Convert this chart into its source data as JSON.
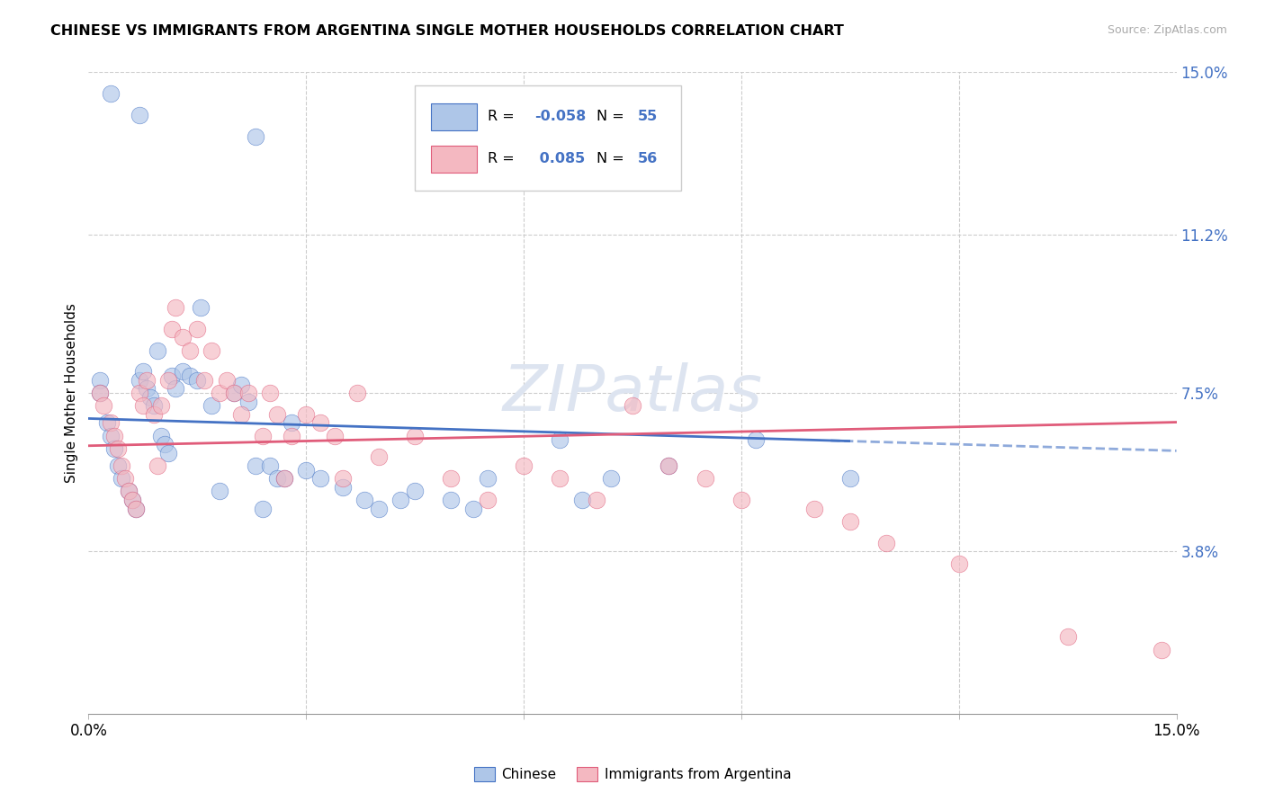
{
  "title": "CHINESE VS IMMIGRANTS FROM ARGENTINA SINGLE MOTHER HOUSEHOLDS CORRELATION CHART",
  "source": "Source: ZipAtlas.com",
  "ylabel": "Single Mother Households",
  "xlim": [
    0,
    15
  ],
  "ylim": [
    0,
    15
  ],
  "ytick_labels_right": [
    "3.8%",
    "7.5%",
    "11.2%",
    "15.0%"
  ],
  "ytick_values_right": [
    3.8,
    7.5,
    11.2,
    15.0
  ],
  "grid_color": "#cccccc",
  "background_color": "#ffffff",
  "chinese_color": "#aec6e8",
  "argentina_color": "#f4b8c1",
  "chinese_line_color": "#4472c4",
  "argentina_line_color": "#e05c7a",
  "label_color": "#4472c4",
  "chinese_R": "-0.058",
  "chinese_N": "55",
  "argentina_R": "0.085",
  "argentina_N": "56",
  "chinese_x": [
    0.3,
    0.7,
    2.3,
    0.15,
    0.15,
    0.25,
    0.3,
    0.35,
    0.4,
    0.45,
    0.55,
    0.6,
    0.65,
    0.7,
    0.75,
    0.8,
    0.85,
    0.9,
    0.95,
    1.0,
    1.05,
    1.1,
    1.15,
    1.2,
    1.3,
    1.4,
    1.5,
    1.55,
    1.7,
    1.8,
    2.0,
    2.1,
    2.2,
    2.3,
    2.4,
    2.5,
    2.6,
    2.7,
    2.8,
    3.0,
    3.2,
    3.5,
    3.8,
    4.0,
    4.3,
    4.5,
    5.0,
    5.3,
    5.5,
    6.5,
    6.8,
    7.2,
    8.0,
    9.2,
    10.5
  ],
  "chinese_y": [
    14.5,
    14.0,
    13.5,
    7.8,
    7.5,
    6.8,
    6.5,
    6.2,
    5.8,
    5.5,
    5.2,
    5.0,
    4.8,
    7.8,
    8.0,
    7.6,
    7.4,
    7.2,
    8.5,
    6.5,
    6.3,
    6.1,
    7.9,
    7.6,
    8.0,
    7.9,
    7.8,
    9.5,
    7.2,
    5.2,
    7.5,
    7.7,
    7.3,
    5.8,
    4.8,
    5.8,
    5.5,
    5.5,
    6.8,
    5.7,
    5.5,
    5.3,
    5.0,
    4.8,
    5.0,
    5.2,
    5.0,
    4.8,
    5.5,
    6.4,
    5.0,
    5.5,
    5.8,
    6.4,
    5.5
  ],
  "argentina_x": [
    0.15,
    0.2,
    0.3,
    0.35,
    0.4,
    0.45,
    0.5,
    0.55,
    0.6,
    0.65,
    0.7,
    0.75,
    0.8,
    0.9,
    0.95,
    1.0,
    1.1,
    1.15,
    1.2,
    1.3,
    1.4,
    1.5,
    1.6,
    1.7,
    1.8,
    1.9,
    2.0,
    2.1,
    2.2,
    2.4,
    2.5,
    2.6,
    2.7,
    2.8,
    3.0,
    3.2,
    3.4,
    3.5,
    3.7,
    4.0,
    4.5,
    5.0,
    5.5,
    6.0,
    6.5,
    7.0,
    7.5,
    8.0,
    8.5,
    9.0,
    10.0,
    10.5,
    11.0,
    12.0,
    13.5,
    14.8
  ],
  "argentina_y": [
    7.5,
    7.2,
    6.8,
    6.5,
    6.2,
    5.8,
    5.5,
    5.2,
    5.0,
    4.8,
    7.5,
    7.2,
    7.8,
    7.0,
    5.8,
    7.2,
    7.8,
    9.0,
    9.5,
    8.8,
    8.5,
    9.0,
    7.8,
    8.5,
    7.5,
    7.8,
    7.5,
    7.0,
    7.5,
    6.5,
    7.5,
    7.0,
    5.5,
    6.5,
    7.0,
    6.8,
    6.5,
    5.5,
    7.5,
    6.0,
    6.5,
    5.5,
    5.0,
    5.8,
    5.5,
    5.0,
    7.2,
    5.8,
    5.5,
    5.0,
    4.8,
    4.5,
    4.0,
    3.5,
    1.8,
    1.5
  ]
}
